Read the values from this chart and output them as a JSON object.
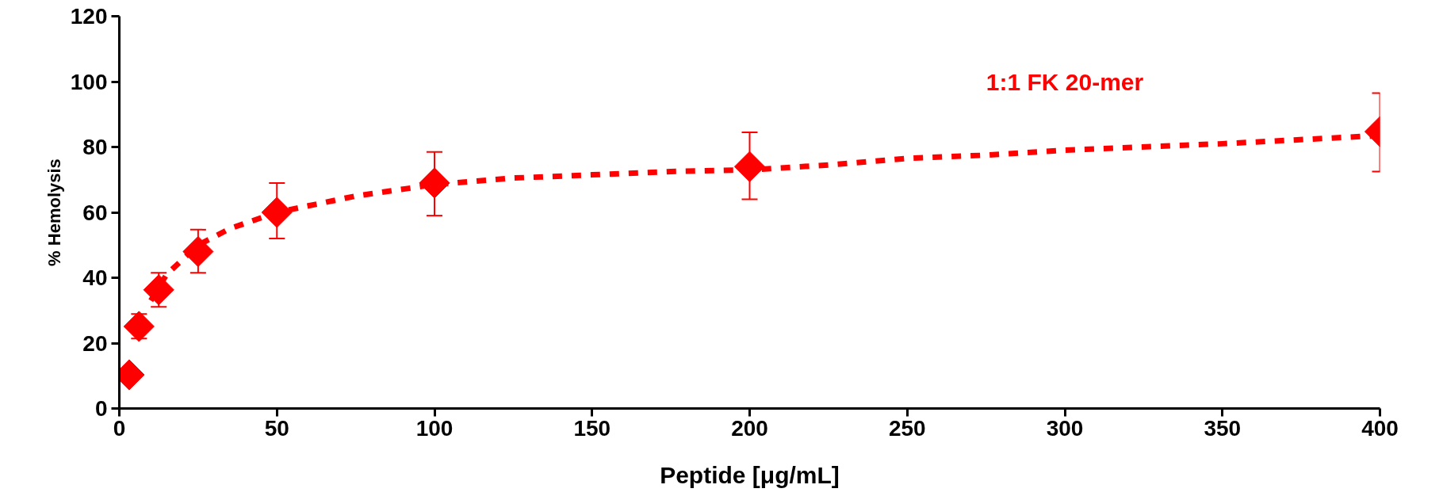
{
  "chart_data": {
    "type": "scatter",
    "xlabel": "Peptide [μg/mL]",
    "ylabel": "% Hemolysis",
    "xlim": [
      0,
      400
    ],
    "xticks": [
      0,
      50,
      100,
      150,
      200,
      250,
      300,
      350,
      400
    ],
    "ylim": [
      0,
      120
    ],
    "yticks": [
      0,
      20,
      40,
      60,
      80,
      100,
      120
    ],
    "grid": false,
    "series": [
      {
        "name": "1:1 FK 20-mer",
        "marker": "diamond",
        "color": "#ff0000",
        "x": [
          3.125,
          6.25,
          12.5,
          25,
          50,
          100,
          200,
          400
        ],
        "values": [
          10.3,
          25.1,
          36.3,
          48,
          60,
          69,
          74,
          84.7
        ],
        "errors": [
          null,
          [
            21.4,
            28.9
          ],
          [
            31.1,
            41.5
          ],
          [
            41.5,
            54.7
          ],
          [
            52,
            69
          ],
          [
            59,
            78.5
          ],
          [
            64,
            84.5
          ],
          [
            72.5,
            96.5
          ]
        ]
      },
      {
        "type": "line",
        "line_style": "dashed",
        "color": "#ff0000",
        "x": [
          10,
          15,
          25,
          35,
          50,
          75,
          100,
          125,
          150,
          175,
          200,
          225,
          250,
          275,
          300,
          350,
          400
        ],
        "values": [
          33,
          41,
          50,
          55,
          60,
          65,
          68.5,
          70.5,
          71.5,
          72.5,
          73,
          74.5,
          76.5,
          77.5,
          79,
          81,
          83.5
        ]
      }
    ]
  }
}
